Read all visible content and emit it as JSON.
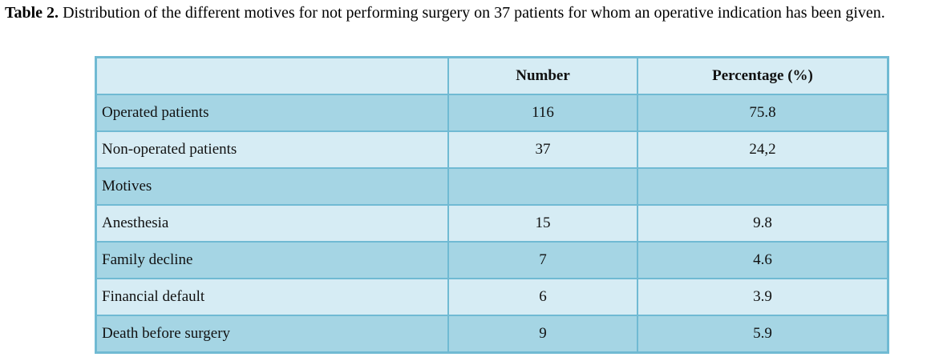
{
  "caption": {
    "label": "Table 2.",
    "text": " Distribution of the different motives for not performing surgery on 37 patients for whom an operative indication has been given."
  },
  "table": {
    "columns": {
      "label": "",
      "number": "Number",
      "percentage": "Percentage (%)"
    },
    "rows": [
      {
        "label": "Operated patients",
        "number": "116",
        "percentage": "75.8"
      },
      {
        "label": "Non-operated patients",
        "number": "37",
        "percentage": "24,2"
      },
      {
        "label": "Motives",
        "number": "",
        "percentage": ""
      },
      {
        "label": "Anesthesia",
        "number": "15",
        "percentage": "9.8"
      },
      {
        "label": "Family decline",
        "number": "7",
        "percentage": "4.6"
      },
      {
        "label": "Financial default",
        "number": "6",
        "percentage": "3.9"
      },
      {
        "label": "Death before surgery",
        "number": "9",
        "percentage": "5.9"
      }
    ],
    "colors": {
      "border": "#70bad3",
      "row_dark": "#a5d5e4",
      "row_light": "#d6ecf4"
    }
  },
  "chart_data": {
    "type": "table",
    "title": "Table 2. Distribution of the different motives for not performing surgery on 37 patients for whom an operative indication has been given.",
    "columns": [
      "",
      "Number",
      "Percentage (%)"
    ],
    "rows": [
      [
        "Operated patients",
        116,
        75.8
      ],
      [
        "Non-operated patients",
        37,
        24.2
      ],
      [
        "Motives",
        null,
        null
      ],
      [
        "Anesthesia",
        15,
        9.8
      ],
      [
        "Family decline",
        7,
        4.6
      ],
      [
        "Financial default",
        6,
        3.9
      ],
      [
        "Death before surgery",
        9,
        5.9
      ]
    ]
  }
}
